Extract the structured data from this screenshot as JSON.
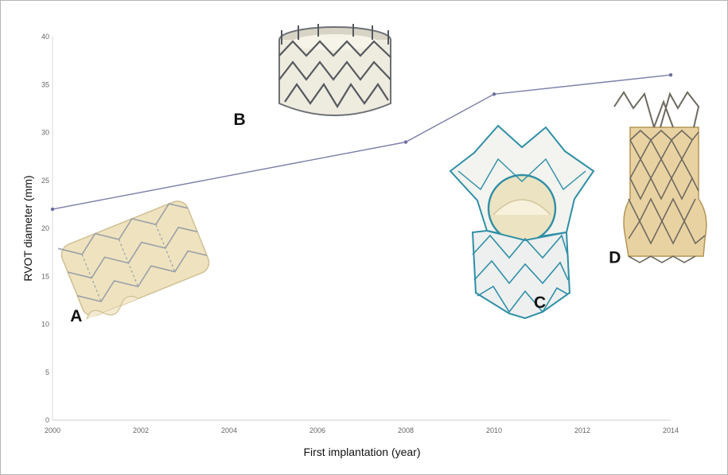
{
  "chart_data": {
    "type": "line",
    "title": "",
    "xlabel": "First implantation (year)",
    "ylabel": "RVOT diameter (mm)",
    "xlim": [
      2000,
      2014
    ],
    "ylim": [
      0,
      40
    ],
    "x_ticks": [
      2000,
      2002,
      2004,
      2006,
      2008,
      2010,
      2012,
      2014
    ],
    "y_ticks": [
      0,
      5,
      10,
      15,
      20,
      25,
      30,
      35,
      40
    ],
    "grid": false,
    "series": [
      {
        "x": [
          2000,
          2008,
          2010,
          2014
        ],
        "values": [
          22,
          29,
          34,
          36
        ]
      }
    ],
    "line_color": "#7b7fa8",
    "marker_color": "#6a6f9c",
    "annotations": [
      {
        "label": "A",
        "x": 2000.4,
        "y": 10.3
      },
      {
        "label": "B",
        "x": 2004.1,
        "y": 30.8
      },
      {
        "label": "C",
        "x": 2010.9,
        "y": 11.7
      },
      {
        "label": "D",
        "x": 2012.6,
        "y": 16.4
      }
    ]
  },
  "colors": {
    "stent_wire": "#8a8e92",
    "stent_blue": "#2f8fa6",
    "tissue": "#efe6c9",
    "gold_frame": "#d9b878"
  }
}
